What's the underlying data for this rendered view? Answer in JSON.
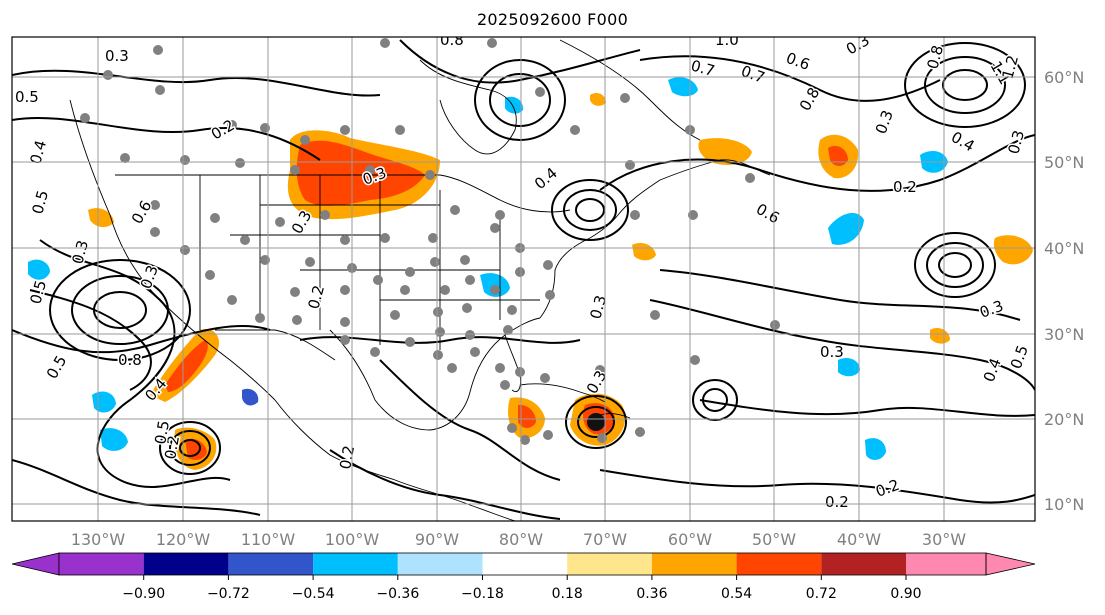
{
  "title": "2025092600 F000",
  "map": {
    "lon_labels": [
      "130°W",
      "120°W",
      "110°W",
      "100°W",
      "90°W",
      "80°W",
      "70°W",
      "60°W",
      "50°W",
      "40°W",
      "30°W"
    ],
    "lat_labels": [
      "60°N",
      "50°N",
      "40°N",
      "30°N",
      "20°N",
      "10°N"
    ],
    "label_color": "#808080",
    "contour_labels": [
      "0.3",
      "0.5",
      "0.4",
      "0.5",
      "0.6",
      "0.3",
      "0.2",
      "0.3",
      "0.5",
      "0.3",
      "0.2",
      "0.3",
      "0.5",
      "0.4",
      "0.8",
      "0.4",
      "0.3",
      "0.3",
      "0.2",
      "0.8",
      "0.7",
      "1.0",
      "0.6",
      "0.7",
      "0.8",
      "0.3",
      "0.4",
      "0.8",
      "1.1",
      "1.2",
      "0.3",
      "0.2",
      "0.6",
      "0.3",
      "0.3",
      "0.2",
      "0.2",
      "0.5",
      "0.2",
      "0.5",
      "0.4",
      "0.3"
    ]
  },
  "colorbar": {
    "tick_labels": [
      "−0.90",
      "−0.72",
      "−0.54",
      "−0.36",
      "−0.18",
      "0.18",
      "0.36",
      "0.54",
      "0.72",
      "0.90"
    ],
    "colors": [
      "#9932cc",
      "#00008b",
      "#3355cc",
      "#00bfff",
      "#aee3ff",
      "#ffffff",
      "#ffe68c",
      "#ffa500",
      "#ff4500",
      "#b22222",
      "#ff88b0"
    ]
  }
}
